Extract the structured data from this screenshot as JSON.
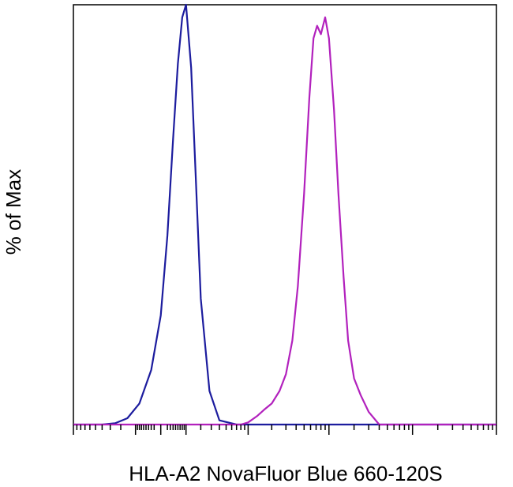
{
  "chart_data": {
    "type": "line",
    "title": "",
    "xlabel": "HLA-A2 NovaFluor Blue 660-120S",
    "ylabel": "% of Max",
    "x_scale": "logicle",
    "xlim": [
      -1000,
      1000000
    ],
    "ylim": [
      0,
      100
    ],
    "grid": false,
    "legend": "none",
    "tick_labels": [],
    "series": [
      {
        "color": "#1c1c9e",
        "x": [
          -1000,
          -400,
          -250,
          -150,
          -80,
          -30,
          0,
          20,
          40,
          60,
          80,
          100,
          130,
          160,
          200,
          280,
          400,
          700,
          1000000
        ],
        "y": [
          0,
          0,
          0.3,
          1.5,
          5,
          13,
          26,
          45,
          68,
          86,
          97,
          100,
          85,
          60,
          30,
          8,
          1,
          0,
          0
        ]
      },
      {
        "color": "#b221bd",
        "x": [
          -1000,
          800,
          1000,
          1300,
          1600,
          2000,
          2500,
          3000,
          3600,
          4200,
          5000,
          5800,
          6500,
          7200,
          8000,
          9000,
          10000,
          11500,
          13000,
          15000,
          17000,
          20000,
          24000,
          30000,
          40000,
          1000000
        ],
        "y": [
          0,
          0,
          0.5,
          2,
          3.5,
          5,
          8,
          12,
          20,
          33,
          55,
          78,
          92,
          95,
          93,
          97,
          92,
          75,
          55,
          35,
          20,
          11,
          7,
          3,
          0,
          0
        ]
      }
    ]
  }
}
